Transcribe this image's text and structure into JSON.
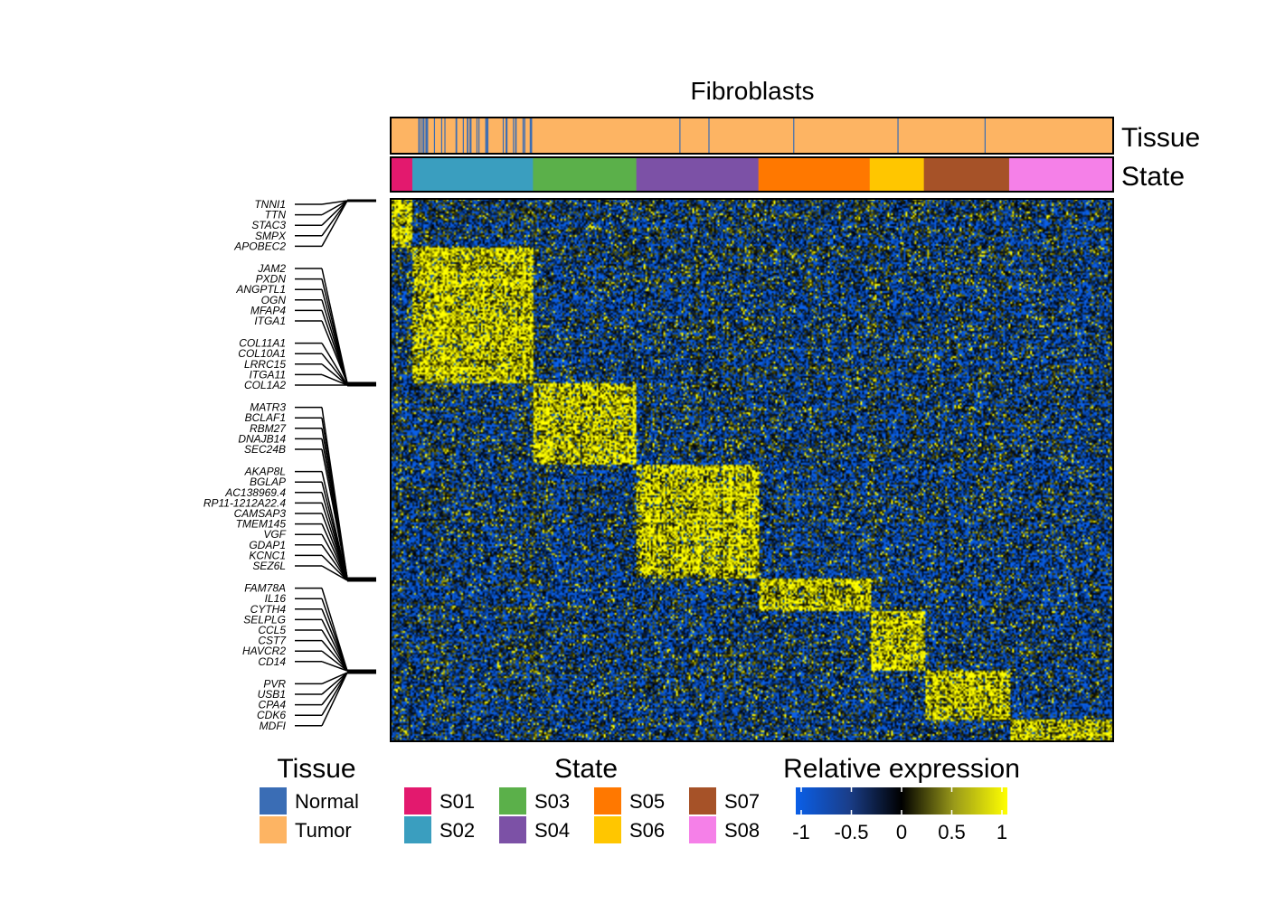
{
  "chart_data": {
    "type": "heatmap",
    "title": "Fibroblasts",
    "annotation_tracks": [
      "Tissue",
      "State"
    ],
    "colors": {
      "Normal": "#3a6db5",
      "Tumor": "#fdb463",
      "S01": "#e3196e",
      "S02": "#3a9ebf",
      "S03": "#5bb04a",
      "S04": "#7c51a6",
      "S05": "#ff7800",
      "S06": "#ffc600",
      "S07": "#a65228",
      "S08": "#f580e8",
      "low": "#0a5fe8",
      "mid": "#000000",
      "high": "#ffff00"
    },
    "states": [
      {
        "name": "S01",
        "fraction": 0.03
      },
      {
        "name": "S02",
        "fraction": 0.167
      },
      {
        "name": "S03",
        "fraction": 0.143
      },
      {
        "name": "S04",
        "fraction": 0.169
      },
      {
        "name": "S05",
        "fraction": 0.154
      },
      {
        "name": "S06",
        "fraction": 0.075
      },
      {
        "name": "S07",
        "fraction": 0.118
      },
      {
        "name": "S08",
        "fraction": 0.144
      }
    ],
    "gene_modules": [
      {
        "state": "S01",
        "fraction": 0.09,
        "genes": [
          "TNNI1",
          "TTN",
          "STAC3",
          "SMPX",
          "APOBEC2"
        ]
      },
      {
        "state": "S02",
        "fraction": 0.25,
        "genes": [
          "JAM2",
          "PXDN",
          "ANGPTL1",
          "OGN",
          "MFAP4",
          "ITGA1"
        ]
      },
      {
        "state": "S03",
        "fraction": 0.15,
        "genes": [
          "COL11A1",
          "COL10A1",
          "LRRC15",
          "ITGA11",
          "COL1A2"
        ]
      },
      {
        "state": "S04",
        "fraction": 0.21,
        "genes": [
          "MATR3",
          "BCLAF1",
          "RBM27",
          "DNAJB14",
          "SEC24B"
        ]
      },
      {
        "state": "S05",
        "fraction": 0.06,
        "genes": [
          "AKAP8L",
          "BGLAP",
          "AC138969.4",
          "RP11-1212A22.4",
          "CAMSAP3",
          "TMEM145",
          "VGF",
          "GDAP1",
          "KCNC1",
          "SEZ6L"
        ]
      },
      {
        "state": "S06",
        "fraction": 0.11,
        "genes": [
          "FAM78A",
          "IL16",
          "CYTH4",
          "SELPLG",
          "CCL5",
          "CST7",
          "HAVCR2",
          "CD14"
        ]
      },
      {
        "state": "S07",
        "fraction": 0.09,
        "genes": [
          "PVR",
          "USB1",
          "CPA4",
          "CDK6",
          "MDFI"
        ]
      },
      {
        "state": "S08",
        "fraction": 0.04,
        "genes": []
      }
    ],
    "normal_cell_fraction_by_state": {
      "S01": 0.0,
      "S02": 0.35,
      "S03": 0.0,
      "S04": 0.02,
      "S05": 0.01,
      "S06": 0.02,
      "S07": 0.01,
      "S08": 0.0
    },
    "legend_tissue": {
      "title": "Tissue",
      "items": [
        "Normal",
        "Tumor"
      ]
    },
    "legend_state": {
      "title": "State",
      "items": [
        "S01",
        "S02",
        "S03",
        "S04",
        "S05",
        "S06",
        "S07",
        "S08"
      ]
    },
    "legend_expression": {
      "title": "Relative expression",
      "range": [
        -1,
        1
      ],
      "ticks": [
        "-1",
        "-0.5",
        "0",
        "0.5",
        "1"
      ]
    }
  }
}
